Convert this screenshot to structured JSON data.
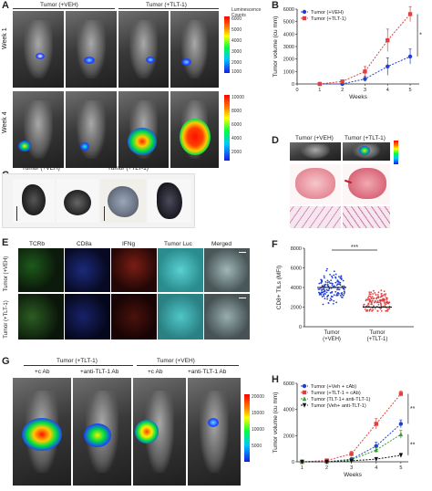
{
  "panels": {
    "A": {
      "label": "A",
      "col_headers": [
        "Tumor (+VEH)",
        "Tumor (+TLT-1)"
      ],
      "row_labels": [
        "Week 1",
        "Week 4"
      ],
      "colorbar_title": "Luminescence Counts",
      "cbar1_ticks": [
        "6000",
        "5000",
        "4000",
        "3000",
        "2000",
        "1000"
      ],
      "cbar2_ticks": [
        "10000",
        "8000",
        "6000",
        "4000",
        "2000"
      ]
    },
    "B": {
      "label": "B"
    },
    "C": {
      "label": "C"
    },
    "D": {
      "label": "D",
      "col_headers": [
        "Tumor (+VEH)",
        "Tumor (+TLT-1)"
      ]
    },
    "E": {
      "label": "E",
      "stain_labels": [
        "TCRb",
        "CD8a",
        "IFNg",
        "Tumor Luc",
        "Merged"
      ],
      "row_labels": [
        "Tumor (+VEH)",
        "Tumor (+TLT-1)"
      ],
      "stain_colors": [
        "#3fae3a",
        "#2a3fbf",
        "#c0392b",
        "#39c6c9",
        "#bfc4c6"
      ]
    },
    "F": {
      "label": "F"
    },
    "G": {
      "label": "G",
      "group_headers": [
        "Tumor (+TLT-1)",
        "Tumor (+VEH)"
      ],
      "sub_headers": [
        "+c Ab",
        "+anti-TLT-1 Ab",
        "+c Ab",
        "+anti-TLT-1 Ab"
      ],
      "cbar_ticks": [
        "20000",
        "15000",
        "10000",
        "5000"
      ]
    },
    "H": {
      "label": "H"
    }
  },
  "chart_data": [
    {
      "panel": "B",
      "type": "line",
      "x": [
        1,
        2,
        3,
        4,
        5
      ],
      "series": [
        {
          "name": "Tumor (+VEH)",
          "color": "#1f3fd1",
          "marker": "circle",
          "values": [
            0,
            0,
            400,
            1400,
            2200
          ],
          "err": [
            0,
            0,
            200,
            700,
            600
          ]
        },
        {
          "name": "Tumor (+TLT-1)",
          "color": "#e04040",
          "marker": "square",
          "values": [
            0,
            200,
            1000,
            3500,
            5600
          ],
          "err": [
            0,
            100,
            400,
            900,
            600
          ]
        }
      ],
      "xlabel": "Weeks",
      "ylabel": "Tumor volume (cu mm)",
      "xlim": [
        0,
        5.4
      ],
      "ylim": [
        0,
        6000
      ],
      "yticks": [
        0,
        1000,
        2000,
        3000,
        4000,
        5000,
        6000
      ],
      "xticks": [
        0,
        1,
        2,
        3,
        4,
        5
      ],
      "significance": [
        "*"
      ],
      "legend": "top-left"
    },
    {
      "panel": "F",
      "type": "scatter",
      "categories": [
        "Tumor (+VEH)",
        "Tumor (+TLT-1)"
      ],
      "ylabel": "CD8+ TILs (MFI)",
      "ylim": [
        0,
        8000
      ],
      "yticks": [
        0,
        2000,
        4000,
        6000,
        8000
      ],
      "means": [
        4000,
        2000
      ],
      "spread": [
        [
          2000,
          6500
        ],
        [
          1600,
          5000
        ]
      ],
      "colors": [
        "#1f3fd1",
        "#e04040"
      ],
      "significance": [
        "***"
      ]
    },
    {
      "panel": "H",
      "type": "line",
      "x": [
        1,
        2,
        3,
        4,
        5
      ],
      "series": [
        {
          "name": "Tumor (+Veh + cAb)",
          "color": "#1f3fd1",
          "marker": "circle",
          "values": [
            0,
            0,
            200,
            1200,
            2900
          ],
          "err": [
            0,
            0,
            100,
            300,
            300
          ]
        },
        {
          "name": "Tumor (+TLT-1 + cAb)",
          "color": "#e04040",
          "marker": "square",
          "values": [
            0,
            100,
            600,
            2900,
            5200
          ],
          "err": [
            0,
            50,
            200,
            400,
            200
          ]
        },
        {
          "name": "Tumor (TLT-1+ anti-TLT-1)",
          "color": "#3a9a3a",
          "marker": "triangle",
          "values": [
            0,
            0,
            150,
            900,
            2100
          ],
          "err": [
            0,
            0,
            80,
            200,
            300
          ]
        },
        {
          "name": "Tumor (Veh+ anti-TLT-1)",
          "color": "#111111",
          "marker": "triangle-down",
          "values": [
            0,
            0,
            80,
            200,
            500
          ],
          "err": [
            0,
            0,
            50,
            80,
            150
          ]
        }
      ],
      "xlabel": "Weeks",
      "ylabel": "Tumor volume (cu mm)",
      "xlim": [
        0.8,
        5.3
      ],
      "ylim": [
        0,
        6000
      ],
      "yticks": [
        0,
        2000,
        4000,
        6000
      ],
      "xticks": [
        1,
        2,
        3,
        4,
        5
      ],
      "significance": [
        "**",
        "**"
      ],
      "legend": "top-left"
    }
  ]
}
